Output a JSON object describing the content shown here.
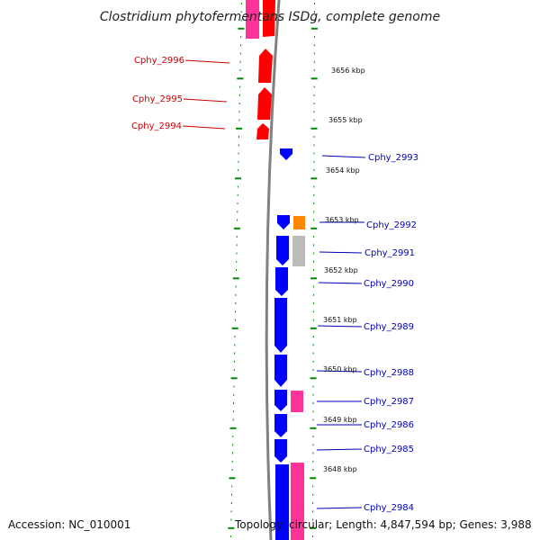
{
  "title": "Clostridium phytofermentans ISDg, complete genome",
  "footer": {
    "accession": "Accession: NC_010001",
    "topology": "Topology: circular; Length: 4,847,594 bp; Genes: 3,988"
  },
  "colors": {
    "forward_cds": "#ff0000",
    "reverse_cds": "#0000ff",
    "gc_pink": "#ff3399",
    "gc_orange": "#ff8800",
    "gc_gray": "#bbbbbb",
    "backbone": "#808080",
    "ticks": "#008800"
  },
  "tick_labels": [
    "3656 kbp",
    "3655 kbp",
    "3654 kbp",
    "3653 kbp",
    "3652 kbp",
    "3651 kbp",
    "3650 kbp",
    "3649 kbp",
    "3648 kbp"
  ],
  "forward_genes": [
    "Cphy_2996",
    "Cphy_2995",
    "Cphy_2994"
  ],
  "reverse_genes": [
    "Cphy_2993",
    "Cphy_2992",
    "Cphy_2991",
    "Cphy_2990",
    "Cphy_2989",
    "Cphy_2988",
    "Cphy_2987",
    "Cphy_2986",
    "Cphy_2985",
    "Cphy_2984"
  ]
}
